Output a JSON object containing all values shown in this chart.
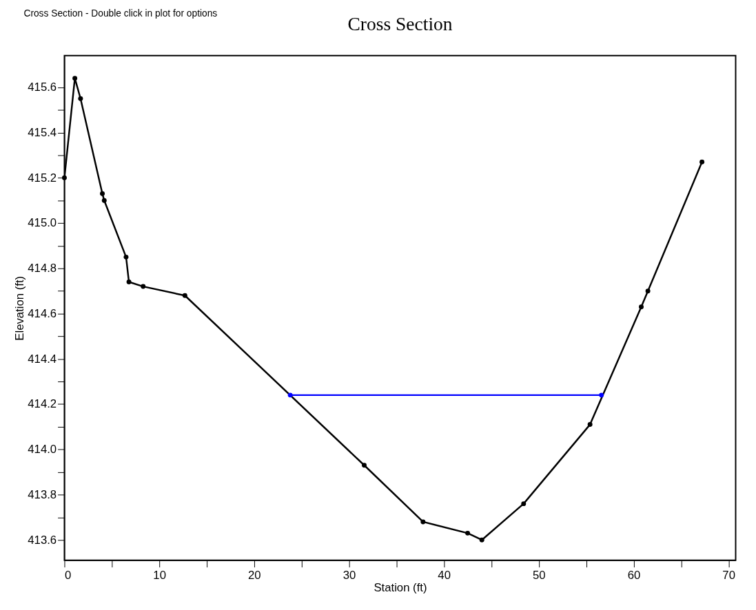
{
  "chart_data": {
    "type": "line",
    "title": "Cross Section",
    "xlabel": "Station (ft)",
    "ylabel": "Elevation (ft)",
    "annotations": [
      "Cross Section - Double click in plot for options"
    ],
    "series": [
      {
        "color": "#000000",
        "x": [
          0,
          1.1,
          1.7,
          4.0,
          4.2,
          6.5,
          6.8,
          8.3,
          12.7,
          31.6,
          37.8,
          42.5,
          44.0,
          48.4,
          55.4,
          60.8,
          61.5,
          67.2
        ],
        "values": [
          415.2,
          415.64,
          415.55,
          415.13,
          415.1,
          414.85,
          414.74,
          414.72,
          414.68,
          413.93,
          413.68,
          413.63,
          413.6,
          413.76,
          414.11,
          414.63,
          414.7,
          415.27
        ]
      },
      {
        "color": "#0000ff",
        "x": [
          23.8,
          56.6
        ],
        "values": [
          414.24,
          414.24
        ]
      }
    ],
    "xlim": [
      0,
      70.75
    ],
    "ylim": [
      413.51,
      415.74
    ],
    "xticks": [
      0,
      {
        "value": 5,
        "label": null
      },
      10,
      {
        "value": 15,
        "label": null
      },
      20,
      {
        "value": 25,
        "label": null
      },
      30,
      {
        "value": 35,
        "label": null
      },
      40,
      {
        "value": 45,
        "label": null
      },
      50,
      {
        "value": 55,
        "label": null
      },
      60,
      {
        "value": 65,
        "label": null
      },
      70
    ],
    "yticks": [
      413.6,
      {
        "value": 413.7,
        "label": null
      },
      413.8,
      {
        "value": 413.9,
        "label": null
      },
      {
        "value": 414.0,
        "label": "414.0"
      },
      {
        "value": 414.1,
        "label": null
      },
      414.2,
      {
        "value": 414.3,
        "label": null
      },
      414.4,
      {
        "value": 414.5,
        "label": null
      },
      414.6,
      {
        "value": 414.7,
        "label": null
      },
      414.8,
      {
        "value": 414.9,
        "label": null
      },
      {
        "value": 415.0,
        "label": "415.0"
      },
      {
        "value": 415.1,
        "label": null
      },
      415.2,
      {
        "value": 415.3,
        "label": null
      },
      415.4,
      {
        "value": 415.5,
        "label": null
      },
      415.6
    ],
    "grid": false,
    "legend": false,
    "marker": "circle",
    "line_style": "solid"
  }
}
